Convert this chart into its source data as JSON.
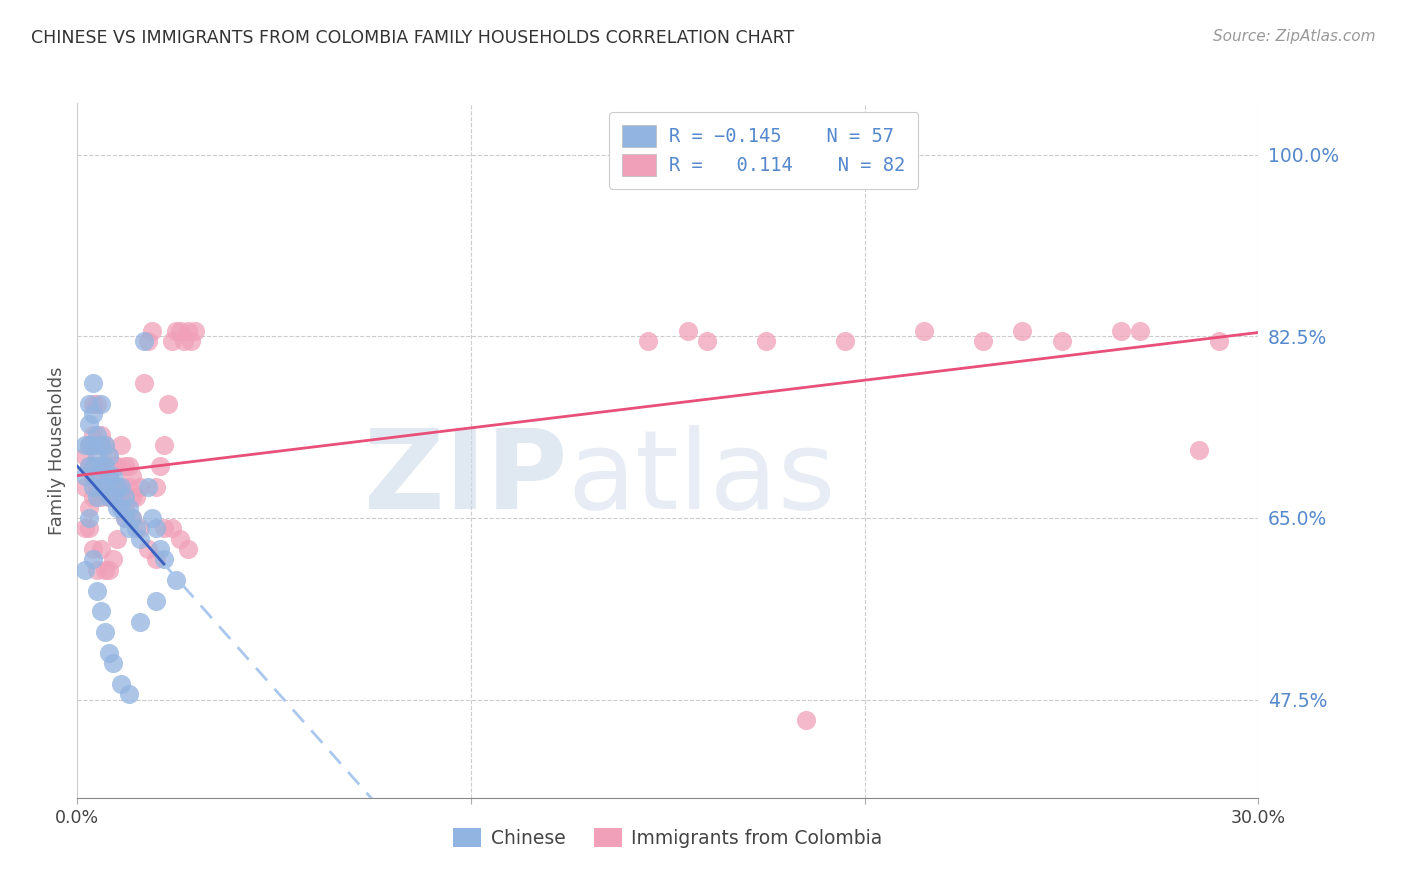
{
  "title": "CHINESE VS IMMIGRANTS FROM COLOMBIA FAMILY HOUSEHOLDS CORRELATION CHART",
  "source": "Source: ZipAtlas.com",
  "ylabel": "Family Households",
  "ytick_labels": [
    "100.0%",
    "82.5%",
    "65.0%",
    "47.5%"
  ],
  "ytick_values": [
    1.0,
    0.825,
    0.65,
    0.475
  ],
  "xmin": 0.0,
  "xmax": 0.3,
  "ymin": 0.38,
  "ymax": 1.05,
  "blue_color": "#92b4e0",
  "pink_color": "#f0a0b8",
  "blue_line_color": "#3a60c0",
  "pink_line_color": "#e8507a",
  "blue_dash_color": "#aac8ee",
  "watermark_zip": "ZIP",
  "watermark_atlas": "atlas",
  "legend_line1_R": "R = -0.145",
  "legend_line1_N": "N = 57",
  "legend_line2_R": "R =  0.114",
  "legend_line2_N": "N = 82",
  "chinese_x": [
    0.002,
    0.002,
    0.003,
    0.003,
    0.003,
    0.003,
    0.004,
    0.004,
    0.004,
    0.004,
    0.004,
    0.005,
    0.005,
    0.005,
    0.005,
    0.006,
    0.006,
    0.006,
    0.006,
    0.007,
    0.007,
    0.007,
    0.008,
    0.008,
    0.008,
    0.009,
    0.009,
    0.01,
    0.01,
    0.011,
    0.011,
    0.012,
    0.012,
    0.013,
    0.013,
    0.014,
    0.015,
    0.016,
    0.017,
    0.018,
    0.019,
    0.02,
    0.021,
    0.022,
    0.002,
    0.003,
    0.004,
    0.005,
    0.006,
    0.007,
    0.008,
    0.009,
    0.011,
    0.013,
    0.016,
    0.02,
    0.025
  ],
  "chinese_y": [
    0.69,
    0.72,
    0.7,
    0.72,
    0.74,
    0.76,
    0.68,
    0.7,
    0.72,
    0.75,
    0.78,
    0.67,
    0.69,
    0.71,
    0.73,
    0.68,
    0.7,
    0.72,
    0.76,
    0.68,
    0.7,
    0.72,
    0.67,
    0.69,
    0.71,
    0.67,
    0.69,
    0.66,
    0.68,
    0.66,
    0.68,
    0.65,
    0.67,
    0.64,
    0.66,
    0.65,
    0.64,
    0.63,
    0.82,
    0.68,
    0.65,
    0.64,
    0.62,
    0.61,
    0.6,
    0.65,
    0.61,
    0.58,
    0.56,
    0.54,
    0.52,
    0.51,
    0.49,
    0.48,
    0.55,
    0.57,
    0.59
  ],
  "colombia_x": [
    0.002,
    0.002,
    0.003,
    0.003,
    0.003,
    0.004,
    0.004,
    0.004,
    0.004,
    0.005,
    0.005,
    0.005,
    0.005,
    0.006,
    0.006,
    0.006,
    0.007,
    0.007,
    0.007,
    0.008,
    0.008,
    0.008,
    0.009,
    0.009,
    0.01,
    0.01,
    0.011,
    0.011,
    0.012,
    0.012,
    0.013,
    0.013,
    0.014,
    0.014,
    0.015,
    0.016,
    0.017,
    0.018,
    0.019,
    0.02,
    0.021,
    0.022,
    0.023,
    0.024,
    0.025,
    0.026,
    0.027,
    0.028,
    0.029,
    0.03,
    0.002,
    0.003,
    0.004,
    0.005,
    0.006,
    0.007,
    0.008,
    0.009,
    0.01,
    0.012,
    0.014,
    0.016,
    0.018,
    0.02,
    0.022,
    0.024,
    0.026,
    0.028,
    0.155,
    0.175,
    0.195,
    0.215,
    0.25,
    0.265,
    0.145,
    0.16,
    0.23,
    0.27,
    0.285,
    0.29,
    0.185,
    0.24
  ],
  "colombia_y": [
    0.68,
    0.71,
    0.66,
    0.7,
    0.72,
    0.67,
    0.69,
    0.73,
    0.76,
    0.68,
    0.7,
    0.72,
    0.76,
    0.67,
    0.7,
    0.73,
    0.68,
    0.7,
    0.72,
    0.67,
    0.69,
    0.71,
    0.68,
    0.7,
    0.67,
    0.7,
    0.68,
    0.72,
    0.66,
    0.7,
    0.68,
    0.7,
    0.67,
    0.69,
    0.67,
    0.68,
    0.78,
    0.82,
    0.83,
    0.68,
    0.7,
    0.72,
    0.76,
    0.82,
    0.83,
    0.83,
    0.82,
    0.83,
    0.82,
    0.83,
    0.64,
    0.64,
    0.62,
    0.6,
    0.62,
    0.6,
    0.6,
    0.61,
    0.63,
    0.65,
    0.65,
    0.64,
    0.62,
    0.61,
    0.64,
    0.64,
    0.63,
    0.62,
    0.83,
    0.82,
    0.82,
    0.83,
    0.82,
    0.83,
    0.82,
    0.82,
    0.82,
    0.83,
    0.715,
    0.82,
    0.455,
    0.83
  ]
}
